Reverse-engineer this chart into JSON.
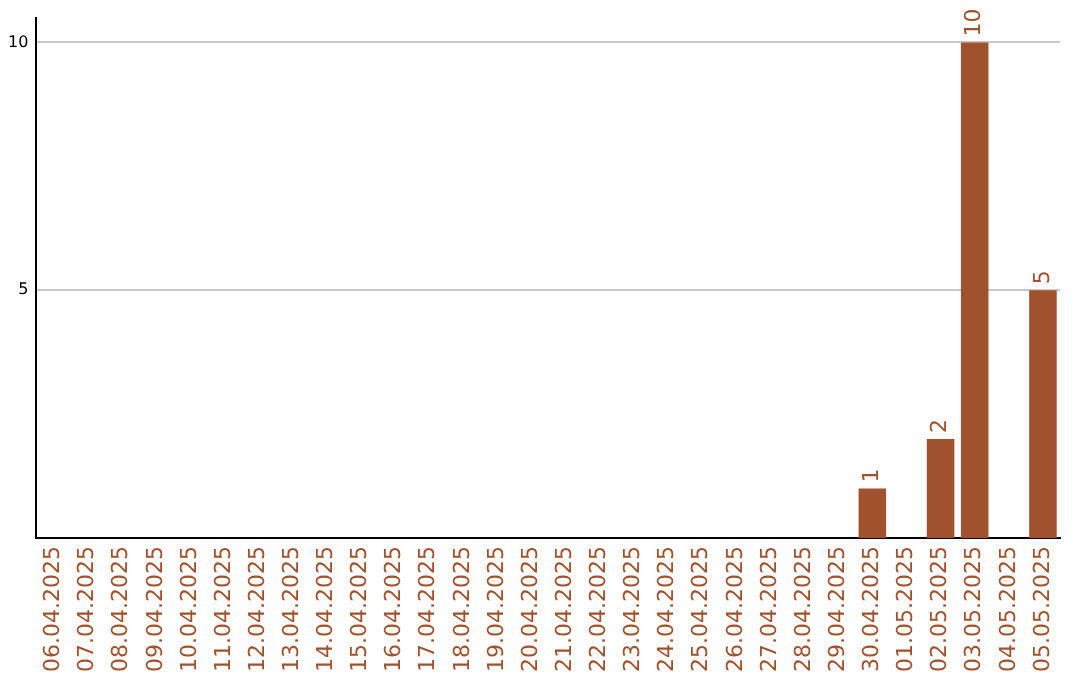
{
  "chart_data": {
    "type": "bar",
    "categories": [
      "06.04.2025",
      "07.04.2025",
      "08.04.2025",
      "09.04.2025",
      "10.04.2025",
      "11.04.2025",
      "12.04.2025",
      "13.04.2025",
      "14.04.2025",
      "15.04.2025",
      "16.04.2025",
      "17.04.2025",
      "18.04.2025",
      "19.04.2025",
      "20.04.2025",
      "21.04.2025",
      "22.04.2025",
      "23.04.2025",
      "24.04.2025",
      "25.04.2025",
      "26.04.2025",
      "27.04.2025",
      "28.04.2025",
      "29.04.2025",
      "30.04.2025",
      "01.05.2025",
      "02.05.2025",
      "03.05.2025",
      "04.05.2025",
      "05.05.2025"
    ],
    "values": [
      0,
      0,
      0,
      0,
      0,
      0,
      0,
      0,
      0,
      0,
      0,
      0,
      0,
      0,
      0,
      0,
      0,
      0,
      0,
      0,
      0,
      0,
      0,
      0,
      1,
      0,
      2,
      10,
      0,
      5
    ],
    "value_labels": [
      null,
      null,
      null,
      null,
      null,
      null,
      null,
      null,
      null,
      null,
      null,
      null,
      null,
      null,
      null,
      null,
      null,
      null,
      null,
      null,
      null,
      null,
      null,
      null,
      "1",
      null,
      "2",
      "10",
      null,
      "5"
    ],
    "color": "#a0522d",
    "ylim": [
      0,
      10.5
    ],
    "yticks": [
      5,
      10
    ],
    "grid": "y"
  }
}
